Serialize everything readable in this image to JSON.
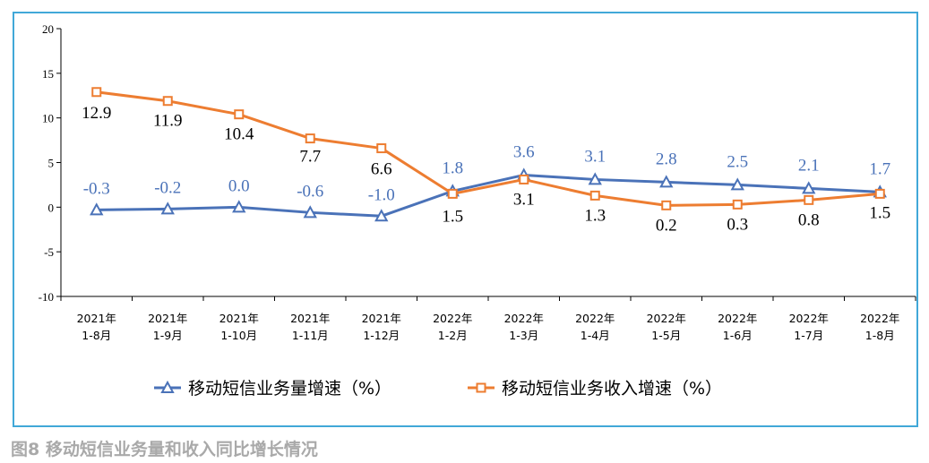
{
  "chart_data": {
    "type": "line",
    "title": "",
    "xlabel": "",
    "ylabel": "",
    "ylim": [
      -10,
      20
    ],
    "yticks": [
      "20",
      "15",
      "10",
      "5",
      "0",
      "-5",
      "-10"
    ],
    "ytick_values": [
      20,
      15,
      10,
      5,
      0,
      -5,
      -10
    ],
    "categories": [
      [
        "2021年",
        "1-8月"
      ],
      [
        "2021年",
        "1-9月"
      ],
      [
        "2021年",
        "1-10月"
      ],
      [
        "2021年",
        "1-11月"
      ],
      [
        "2021年",
        "1-12月"
      ],
      [
        "2022年",
        "1-2月"
      ],
      [
        "2022年",
        "1-3月"
      ],
      [
        "2022年",
        "1-4月"
      ],
      [
        "2022年",
        "1-5月"
      ],
      [
        "2022年",
        "1-6月"
      ],
      [
        "2022年",
        "1-7月"
      ],
      [
        "2022年",
        "1-8月"
      ]
    ],
    "series": [
      {
        "name": "移动短信业务量增速（%）",
        "color": "#4a72b8",
        "marker": "triangle",
        "values": [
          -0.3,
          -0.2,
          0.0,
          -0.6,
          -1.0,
          1.8,
          3.6,
          3.1,
          2.8,
          2.5,
          2.1,
          1.7
        ],
        "labels": [
          "-0.3",
          "-0.2",
          "0.0",
          "-0.6",
          "-1.0",
          "1.8",
          "3.6",
          "3.1",
          "2.8",
          "2.5",
          "2.1",
          "1.7"
        ]
      },
      {
        "name": "移动短信业务收入增速（%）",
        "color": "#ed7d31",
        "marker": "square",
        "values": [
          12.9,
          11.9,
          10.4,
          7.7,
          6.6,
          1.5,
          3.1,
          1.3,
          0.2,
          0.3,
          0.8,
          1.5
        ],
        "labels": [
          "12.9",
          "11.9",
          "10.4",
          "7.7",
          "6.6",
          "1.5",
          "3.1",
          "1.3",
          "0.2",
          "0.3",
          "0.8",
          "1.5"
        ]
      }
    ],
    "grid": false,
    "legend_position": "bottom"
  },
  "caption": "图8 移动短信业务量和收入同比增长情况"
}
